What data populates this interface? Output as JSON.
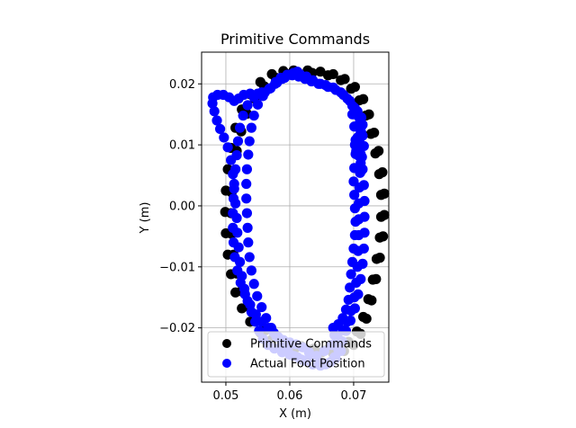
{
  "chart_data": {
    "type": "scatter",
    "title": "Primitive Commands",
    "xlabel": "X (m)",
    "ylabel": "Y (m)",
    "xlim": [
      0.0462,
      0.0755
    ],
    "ylim": [
      -0.0289,
      0.0252
    ],
    "x_ticks": [
      0.05,
      0.06,
      0.07
    ],
    "x_tick_labels": [
      "0.05",
      "0.06",
      "0.07"
    ],
    "y_ticks": [
      -0.02,
      -0.01,
      0.0,
      0.01,
      0.02
    ],
    "y_tick_labels": [
      "−0.02",
      "−0.01",
      "0.00",
      "0.01",
      "0.02"
    ],
    "grid": true,
    "legend_position": "lower-right",
    "series": [
      {
        "name": "Primitive Commands",
        "color": "#000000",
        "marker": "circle",
        "points": [
          [
            0.0606,
            0.0222
          ],
          [
            0.0628,
            0.0222
          ],
          [
            0.0648,
            0.022
          ],
          [
            0.0668,
            0.0216
          ],
          [
            0.0686,
            0.0208
          ],
          [
            0.0702,
            0.0195
          ],
          [
            0.0715,
            0.0175
          ],
          [
            0.0724,
            0.015
          ],
          [
            0.0732,
            0.012
          ],
          [
            0.0739,
            0.009
          ],
          [
            0.0745,
            0.0055
          ],
          [
            0.0748,
            0.002
          ],
          [
            0.0748,
            -0.0015
          ],
          [
            0.0746,
            -0.005
          ],
          [
            0.0741,
            -0.0085
          ],
          [
            0.0735,
            -0.012
          ],
          [
            0.0728,
            -0.0155
          ],
          [
            0.072,
            -0.0185
          ],
          [
            0.0711,
            -0.021
          ],
          [
            0.07,
            -0.0228
          ],
          [
            0.0685,
            -0.0238
          ],
          [
            0.0668,
            -0.0242
          ],
          [
            0.065,
            -0.024
          ],
          [
            0.063,
            -0.0236
          ],
          [
            0.061,
            -0.0232
          ],
          [
            0.059,
            -0.0228
          ],
          [
            0.0571,
            -0.022
          ],
          [
            0.0554,
            -0.0208
          ],
          [
            0.0538,
            -0.019
          ],
          [
            0.0525,
            -0.0168
          ],
          [
            0.0515,
            -0.0142
          ],
          [
            0.0508,
            -0.0112
          ],
          [
            0.0503,
            -0.008
          ],
          [
            0.05,
            -0.0045
          ],
          [
            0.0499,
            -0.001
          ],
          [
            0.05,
            0.0025
          ],
          [
            0.0503,
            0.006
          ],
          [
            0.0508,
            0.0095
          ],
          [
            0.0515,
            0.0128
          ],
          [
            0.0525,
            0.0158
          ],
          [
            0.0538,
            0.0183
          ],
          [
            0.0554,
            0.0203
          ],
          [
            0.0572,
            0.0216
          ],
          [
            0.059,
            0.0221
          ],
          [
            0.0612,
            0.0219
          ],
          [
            0.0635,
            0.0218
          ],
          [
            0.066,
            0.0214
          ],
          [
            0.068,
            0.0206
          ],
          [
            0.0696,
            0.0192
          ],
          [
            0.0709,
            0.0173
          ],
          [
            0.0719,
            0.0148
          ],
          [
            0.0727,
            0.0118
          ],
          [
            0.0734,
            0.0086
          ],
          [
            0.074,
            0.0052
          ],
          [
            0.0743,
            0.0018
          ],
          [
            0.0743,
            -0.0018
          ],
          [
            0.0741,
            -0.0052
          ],
          [
            0.0736,
            -0.0087
          ],
          [
            0.073,
            -0.0121
          ],
          [
            0.0723,
            -0.0153
          ],
          [
            0.0715,
            -0.0182
          ],
          [
            0.0705,
            -0.0206
          ],
          [
            0.0692,
            -0.0223
          ],
          [
            0.0676,
            -0.0233
          ],
          [
            0.0658,
            -0.0236
          ],
          [
            0.0638,
            -0.0234
          ],
          [
            0.0618,
            -0.023
          ],
          [
            0.0598,
            -0.0225
          ],
          [
            0.0579,
            -0.0216
          ],
          [
            0.0562,
            -0.0204
          ],
          [
            0.0547,
            -0.0187
          ],
          [
            0.0534,
            -0.0165
          ],
          [
            0.0524,
            -0.014
          ],
          [
            0.0517,
            -0.0111
          ],
          [
            0.0512,
            -0.008
          ],
          [
            0.0509,
            -0.0046
          ],
          [
            0.0508,
            -0.0012
          ],
          [
            0.0509,
            0.0022
          ],
          [
            0.0512,
            0.0056
          ],
          [
            0.0517,
            0.009
          ],
          [
            0.0524,
            0.0122
          ],
          [
            0.0533,
            0.0151
          ],
          [
            0.0545,
            0.0176
          ],
          [
            0.056,
            0.0196
          ],
          [
            0.0578,
            0.021
          ],
          [
            0.0596,
            0.0216
          ]
        ]
      },
      {
        "name": "Actual Foot Position",
        "color": "#0000ff",
        "marker": "circle",
        "points": [
          [
            0.0612,
            0.022
          ],
          [
            0.06,
            0.0215
          ],
          [
            0.0588,
            0.0208
          ],
          [
            0.0577,
            0.02
          ],
          [
            0.0568,
            0.0192
          ],
          [
            0.0556,
            0.0186
          ],
          [
            0.0544,
            0.0178
          ],
          [
            0.0534,
            0.0165
          ],
          [
            0.0527,
            0.0148
          ],
          [
            0.0522,
            0.0128
          ],
          [
            0.0519,
            0.0106
          ],
          [
            0.0517,
            0.0083
          ],
          [
            0.0515,
            0.006
          ],
          [
            0.0513,
            0.0036
          ],
          [
            0.0512,
            0.0012
          ],
          [
            0.0511,
            -0.0012
          ],
          [
            0.0511,
            -0.0036
          ],
          [
            0.0512,
            -0.006
          ],
          [
            0.0514,
            -0.0084
          ],
          [
            0.0518,
            -0.0106
          ],
          [
            0.0523,
            -0.0126
          ],
          [
            0.053,
            -0.0145
          ],
          [
            0.0538,
            -0.0162
          ],
          [
            0.0547,
            -0.0178
          ],
          [
            0.0556,
            -0.019
          ],
          [
            0.0566,
            -0.02
          ],
          [
            0.0575,
            -0.0208
          ],
          [
            0.0582,
            -0.0215
          ],
          [
            0.059,
            -0.022
          ],
          [
            0.06,
            -0.0224
          ],
          [
            0.061,
            -0.0227
          ],
          [
            0.062,
            -0.0232
          ],
          [
            0.063,
            -0.024
          ],
          [
            0.064,
            -0.025
          ],
          [
            0.0648,
            -0.0257
          ],
          [
            0.0656,
            -0.026
          ],
          [
            0.0664,
            -0.0256
          ],
          [
            0.067,
            -0.0248
          ],
          [
            0.0676,
            -0.0236
          ],
          [
            0.0682,
            -0.0222
          ],
          [
            0.0688,
            -0.0205
          ],
          [
            0.0695,
            -0.0188
          ],
          [
            0.0702,
            -0.0168
          ],
          [
            0.0707,
            -0.0145
          ],
          [
            0.0711,
            -0.012
          ],
          [
            0.0714,
            -0.0095
          ],
          [
            0.0716,
            -0.007
          ],
          [
            0.0717,
            -0.0044
          ],
          [
            0.0717,
            -0.0018
          ],
          [
            0.0717,
            0.0008
          ],
          [
            0.0716,
            0.0034
          ],
          [
            0.0714,
            0.006
          ],
          [
            0.0711,
            0.0085
          ],
          [
            0.0709,
            0.0105
          ],
          [
            0.0711,
            0.012
          ],
          [
            0.0714,
            0.0133
          ],
          [
            0.0712,
            0.0145
          ],
          [
            0.0706,
            0.0155
          ],
          [
            0.07,
            0.0162
          ],
          [
            0.0698,
            0.015
          ],
          [
            0.0701,
            0.013
          ],
          [
            0.0703,
            0.0108
          ],
          [
            0.0703,
            0.0085
          ],
          [
            0.0701,
            0.0062
          ],
          [
            0.07,
            0.004
          ],
          [
            0.0701,
            0.0018
          ],
          [
            0.0702,
            -0.0004
          ],
          [
            0.0703,
            -0.0026
          ],
          [
            0.0702,
            -0.0048
          ],
          [
            0.07,
            -0.007
          ],
          [
            0.0698,
            -0.0092
          ],
          [
            0.0696,
            -0.0112
          ],
          [
            0.0694,
            -0.0134
          ],
          [
            0.0692,
            -0.0154
          ],
          [
            0.0688,
            -0.017
          ],
          [
            0.0683,
            -0.0184
          ],
          [
            0.0676,
            -0.0194
          ],
          [
            0.0668,
            -0.02
          ],
          [
            0.067,
            -0.0212
          ],
          [
            0.0676,
            -0.0224
          ],
          [
            0.068,
            -0.0238
          ],
          [
            0.0672,
            -0.025
          ],
          [
            0.066,
            -0.0258
          ],
          [
            0.0648,
            -0.0262
          ],
          [
            0.0636,
            -0.026
          ],
          [
            0.0624,
            -0.0254
          ],
          [
            0.0612,
            -0.0248
          ],
          [
            0.06,
            -0.0244
          ],
          [
            0.0588,
            -0.024
          ],
          [
            0.0576,
            -0.0234
          ],
          [
            0.0566,
            -0.0228
          ],
          [
            0.0558,
            -0.0218
          ],
          [
            0.0552,
            -0.0205
          ],
          [
            0.0546,
            -0.019
          ],
          [
            0.054,
            -0.0174
          ],
          [
            0.0534,
            -0.0156
          ],
          [
            0.0529,
            -0.0136
          ],
          [
            0.0525,
            -0.0115
          ],
          [
            0.0522,
            -0.0092
          ],
          [
            0.052,
            -0.0068
          ],
          [
            0.0518,
            -0.0044
          ],
          [
            0.0517,
            -0.002
          ],
          [
            0.0515,
            0.0004
          ],
          [
            0.0513,
            0.0028
          ],
          [
            0.0511,
            0.0052
          ],
          [
            0.0508,
            0.0075
          ],
          [
            0.0503,
            0.0096
          ],
          [
            0.0497,
            0.0112
          ],
          [
            0.0491,
            0.0126
          ],
          [
            0.0486,
            0.014
          ],
          [
            0.0482,
            0.0155
          ],
          [
            0.0479,
            0.0168
          ],
          [
            0.048,
            0.0178
          ],
          [
            0.0487,
            0.0182
          ],
          [
            0.0496,
            0.0182
          ],
          [
            0.0505,
            0.0178
          ],
          [
            0.0513,
            0.0172
          ],
          [
            0.052,
            0.0176
          ],
          [
            0.0528,
            0.0182
          ],
          [
            0.0538,
            0.0184
          ],
          [
            0.055,
            0.0184
          ],
          [
            0.0561,
            0.0186
          ],
          [
            0.057,
            0.0193
          ],
          [
            0.0578,
            0.0203
          ],
          [
            0.0586,
            0.021
          ],
          [
            0.0596,
            0.0215
          ],
          [
            0.0606,
            0.0218
          ],
          [
            0.0616,
            0.0216
          ],
          [
            0.0626,
            0.0212
          ],
          [
            0.0636,
            0.0206
          ],
          [
            0.0648,
            0.02
          ],
          [
            0.066,
            0.0195
          ],
          [
            0.0672,
            0.019
          ],
          [
            0.0684,
            0.0182
          ],
          [
            0.0694,
            0.0172
          ],
          [
            0.0702,
            0.016
          ],
          [
            0.0708,
            0.0146
          ],
          [
            0.0712,
            0.013
          ],
          [
            0.0714,
            0.0115
          ],
          [
            0.0716,
            0.0098
          ],
          [
            0.0713,
            0.008
          ],
          [
            0.0711,
            0.0056
          ],
          [
            0.0709,
            0.003
          ],
          [
            0.0708,
            0.0004
          ],
          [
            0.0708,
            -0.0022
          ],
          [
            0.0708,
            -0.0048
          ],
          [
            0.0707,
            -0.0074
          ],
          [
            0.0706,
            -0.01
          ],
          [
            0.0704,
            -0.0126
          ],
          [
            0.0701,
            -0.015
          ],
          [
            0.0696,
            -0.0172
          ],
          [
            0.069,
            -0.019
          ],
          [
            0.0683,
            -0.0204
          ],
          [
            0.0675,
            -0.0216
          ],
          [
            0.0665,
            -0.0228
          ],
          [
            0.0654,
            -0.0238
          ],
          [
            0.0642,
            -0.0246
          ],
          [
            0.063,
            -0.025
          ],
          [
            0.0618,
            -0.0252
          ],
          [
            0.0606,
            -0.0246
          ],
          [
            0.0597,
            -0.0236
          ],
          [
            0.0588,
            -0.0226
          ],
          [
            0.0579,
            -0.0214
          ],
          [
            0.0571,
            -0.02
          ],
          [
            0.0563,
            -0.0184
          ],
          [
            0.0556,
            -0.0166
          ],
          [
            0.0549,
            -0.0148
          ],
          [
            0.0544,
            -0.0128
          ],
          [
            0.054,
            -0.0106
          ],
          [
            0.0537,
            -0.0084
          ],
          [
            0.0535,
            -0.006
          ],
          [
            0.0534,
            -0.0036
          ],
          [
            0.0533,
            -0.0012
          ],
          [
            0.0532,
            0.0012
          ],
          [
            0.0532,
            0.0036
          ],
          [
            0.0533,
            0.006
          ],
          [
            0.0535,
            0.0084
          ],
          [
            0.0537,
            0.0106
          ],
          [
            0.054,
            0.0128
          ],
          [
            0.0544,
            0.0148
          ],
          [
            0.055,
            0.0166
          ],
          [
            0.0558,
            0.018
          ],
          [
            0.0568,
            0.0192
          ],
          [
            0.058,
            0.0202
          ],
          [
            0.0592,
            0.021
          ],
          [
            0.0604,
            0.0214
          ],
          [
            0.0614,
            0.0212
          ],
          [
            0.0624,
            0.0208
          ],
          [
            0.0634,
            0.0204
          ],
          [
            0.0645,
            0.02
          ],
          [
            0.0656,
            0.0198
          ],
          [
            0.0668,
            0.0194
          ],
          [
            0.068,
            0.0186
          ],
          [
            0.069,
            0.0176
          ],
          [
            0.0698,
            0.0164
          ],
          [
            0.0704,
            0.015
          ],
          [
            0.0709,
            0.0135
          ],
          [
            0.0712,
            0.012
          ],
          [
            0.0706,
            0.0112
          ],
          [
            0.0702,
            0.01
          ],
          [
            0.0704,
            0.009
          ],
          [
            0.0708,
            0.0082
          ],
          [
            0.0711,
            0.007
          ],
          [
            0.071,
            0.0054
          ]
        ]
      }
    ]
  }
}
